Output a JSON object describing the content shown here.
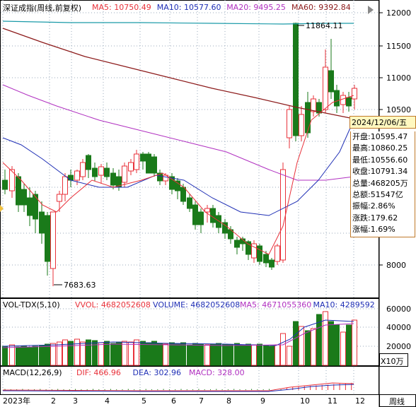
{
  "panel_title": "深证成指(周线,前复权)",
  "ma_legend": [
    {
      "label": "MA5: 10750.49",
      "color": "#e8313a"
    },
    {
      "label": "MA10: 10577.60",
      "color": "#1f2fb5"
    },
    {
      "label": "MA20: 9495.25",
      "color": "#b030c0"
    },
    {
      "label": "MA60: 9392.84",
      "color": "#8c1a1a"
    }
  ],
  "y_axis_labels": [
    "12000",
    "11500",
    "11000",
    "10500",
    "8000"
  ],
  "high_marker": "11864.11",
  "low_marker": "7683.63",
  "info_panel": {
    "date": "2024/12/06/五",
    "rows": [
      "开盘:10595.47",
      "最高:10860.25",
      "最低:10556.60",
      "收盘:10791.34",
      "总量:468205万",
      "总额:51547亿",
      "振幅:2.86%",
      "涨跌:179.62",
      "涨幅:1.69%"
    ]
  },
  "volume_header": {
    "name": "VOL-TDX(5,10)",
    "items": [
      {
        "label": "VVOL: 4682052608",
        "color": "#e8313a"
      },
      {
        "label": "VOLUME: 4682052608",
        "color": "#1f2fb5"
      },
      {
        "label": "MA5: 4671055360",
        "color": "#b030c0"
      },
      {
        "label": "MA10: 4289592",
        "color": "#1f2fb5"
      }
    ]
  },
  "volume_axis_labels": [
    "60000",
    "40000",
    "20000"
  ],
  "volume_unit": "X10万",
  "macd_header": {
    "name": "MACD(12,26,9)",
    "items": [
      {
        "label": "DIF: 466.96",
        "color": "#e8313a"
      },
      {
        "label": "DEA: 302.96",
        "color": "#1f2fb5"
      },
      {
        "label": "MACD: 328.00",
        "color": "#b030c0"
      }
    ]
  },
  "x_axis_labels": [
    "2023年",
    "2",
    "3",
    "4",
    "5",
    "6",
    "7",
    "8",
    "9",
    "10",
    "11",
    "12"
  ],
  "period_label": "周线",
  "colors": {
    "up": "#e8313a",
    "down": "#1a7a1a",
    "ma60": "#8c1a1a",
    "cyan": "#1a9aa8"
  },
  "chart_data": {
    "type": "candlestick",
    "title": "深证成指(周线,前复权)",
    "last_bar": {
      "date": "2024/12/06",
      "open": 10595.47,
      "high": 10860.25,
      "low": 10556.6,
      "close": 10791.34
    },
    "ma": {
      "MA5": 10750.49,
      "MA10": 10577.6,
      "MA20": 9495.25,
      "MA60": 9392.84
    },
    "extremes": {
      "high": 11864.11,
      "low": 7683.63
    }
  }
}
